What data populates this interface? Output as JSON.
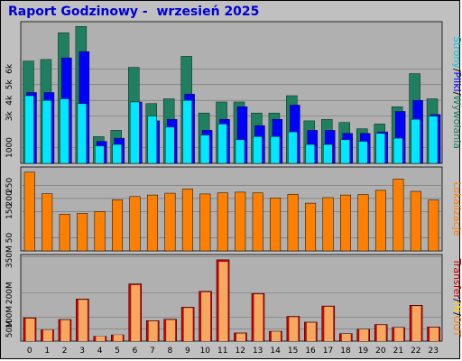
{
  "title": "Raport Godzinowy -  wrzesień 2025",
  "colors": {
    "background": "#c0c0c0",
    "plot_background": "#b0b0b0",
    "title": "#0000d0",
    "requests": "#1e8060",
    "files": "#0000ff",
    "pages": "#00e8ff",
    "sites": "#ff8000",
    "transfer_out": "#cc0000",
    "transfer_in": "#f4a860",
    "label_green": "#1e8060",
    "label_blue": "#0000ff",
    "label_cyan": "#00c8d8",
    "label_orange": "#ff8000",
    "label_red": "#cc0000",
    "label_in": "#ffd400"
  },
  "chart_data": [
    {
      "type": "bar",
      "categories": [
        "0",
        "1",
        "2",
        "3",
        "4",
        "5",
        "6",
        "7",
        "8",
        "9",
        "10",
        "11",
        "12",
        "13",
        "14",
        "15",
        "16",
        "17",
        "18",
        "19",
        "20",
        "21",
        "22",
        "23"
      ],
      "series": [
        {
          "name": "Wywołania",
          "values": [
            6500,
            6600,
            8300,
            8700,
            1700,
            2100,
            6100,
            3800,
            4100,
            6800,
            3200,
            3900,
            3900,
            3200,
            3200,
            4300,
            2700,
            2800,
            2600,
            2200,
            2500,
            3600,
            5700,
            4100
          ]
        },
        {
          "name": "Pliki",
          "values": [
            4500,
            4500,
            6700,
            7100,
            1400,
            1600,
            3900,
            2700,
            2800,
            4400,
            2100,
            2800,
            3600,
            2400,
            2800,
            3700,
            2100,
            2100,
            1900,
            1900,
            2000,
            3300,
            4000,
            3100
          ]
        },
        {
          "name": "Strony",
          "values": [
            4300,
            4000,
            4100,
            3800,
            1100,
            1200,
            3900,
            3000,
            2300,
            4000,
            1800,
            2500,
            1500,
            1700,
            1700,
            2000,
            1200,
            1200,
            1500,
            1400,
            1900,
            1600,
            2800,
            3000
          ]
        }
      ],
      "y_ticks": [
        "1000",
        "3k",
        "4k",
        "5k",
        "6k"
      ],
      "side_label": [
        "Strony",
        "/",
        "Pliki",
        "/",
        "Wywołania"
      ]
    },
    {
      "type": "bar",
      "categories": [
        "0",
        "1",
        "2",
        "3",
        "4",
        "5",
        "6",
        "7",
        "8",
        "9",
        "10",
        "11",
        "12",
        "13",
        "14",
        "15",
        "16",
        "17",
        "18",
        "19",
        "20",
        "21",
        "22",
        "23"
      ],
      "series": [
        {
          "name": "Lokalizacje",
          "values": [
            300,
            218,
            140,
            143,
            150,
            195,
            207,
            213,
            220,
            236,
            217,
            221,
            224,
            221,
            202,
            216,
            182,
            203,
            213,
            215,
            231,
            274,
            227,
            194
          ]
        }
      ],
      "y_ticks": [
        "50",
        "150",
        "200",
        "250"
      ],
      "side_label": [
        "Lokalizacje"
      ]
    },
    {
      "type": "bar",
      "categories": [
        "0",
        "1",
        "2",
        "3",
        "4",
        "5",
        "6",
        "7",
        "8",
        "9",
        "10",
        "11",
        "12",
        "13",
        "14",
        "15",
        "16",
        "17",
        "18",
        "19",
        "20",
        "21",
        "22",
        "23"
      ],
      "series": [
        {
          "name": "OUT",
          "values": [
            97,
            47,
            90,
            175,
            20,
            26,
            238,
            85,
            91,
            141,
            207,
            338,
            34,
            198,
            41,
            103,
            79,
            146,
            31,
            50,
            69,
            57,
            149,
            59
          ]
        },
        {
          "name": "IN",
          "values": [
            94,
            47,
            88,
            172,
            20,
            26,
            233,
            83,
            88,
            138,
            203,
            330,
            32,
            195,
            40,
            100,
            77,
            143,
            30,
            49,
            67,
            56,
            146,
            57
          ]
        }
      ],
      "y_ticks": [
        "50M",
        "100M",
        "200M",
        "350M"
      ],
      "side_label": [
        "Transfer",
        "/",
        "IN",
        "/",
        "OUT"
      ]
    }
  ]
}
